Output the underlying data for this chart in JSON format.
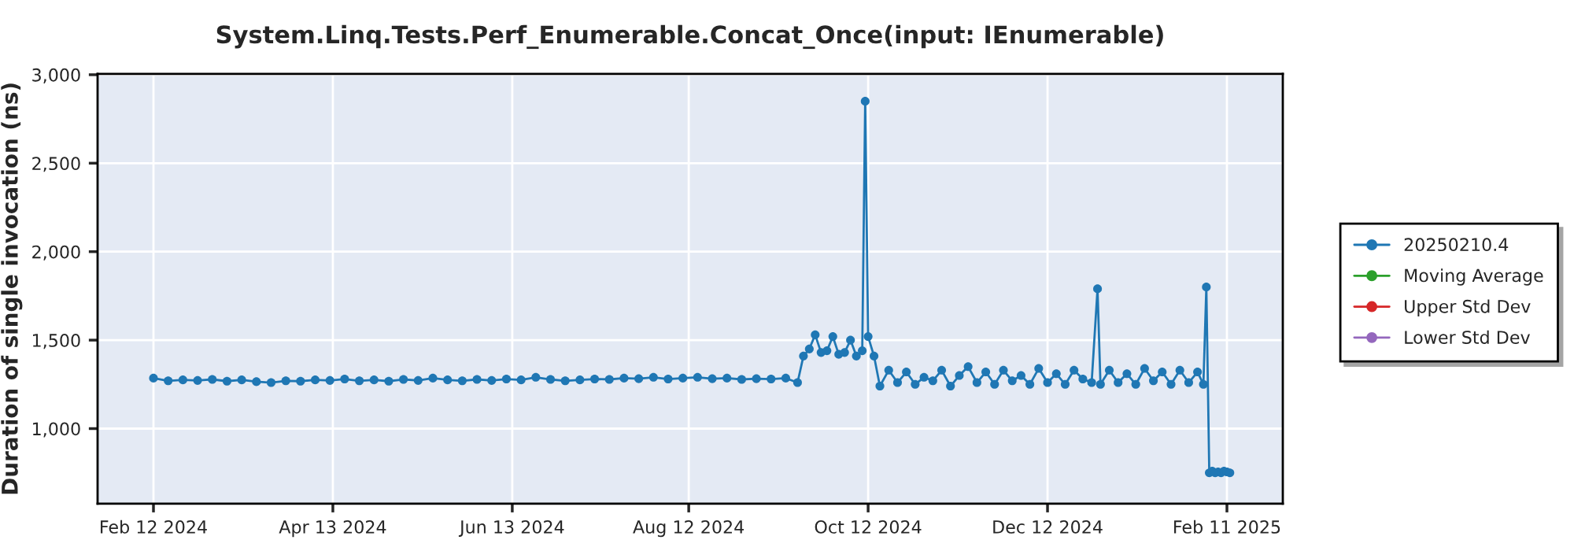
{
  "chart_data": {
    "type": "line",
    "title": "System.Linq.Tests.Perf_Enumerable.Concat_Once(input: IEnumerable)",
    "ylabel": "Duration of single invocation (ns)",
    "xlim": [
      "2024-01-24",
      "2025-03-02"
    ],
    "xticks": [
      {
        "value": "2024-02-12",
        "label": "Feb 12 2024"
      },
      {
        "value": "2024-04-13",
        "label": "Apr 13 2024"
      },
      {
        "value": "2024-06-13",
        "label": "Jun 13 2024"
      },
      {
        "value": "2024-08-12",
        "label": "Aug 12 2024"
      },
      {
        "value": "2024-10-12",
        "label": "Oct 12 2024"
      },
      {
        "value": "2024-12-12",
        "label": "Dec 12 2024"
      },
      {
        "value": "2025-02-11",
        "label": "Feb 11 2025"
      }
    ],
    "ylim": [
      576,
      3005
    ],
    "yticks": [
      {
        "value": 1000,
        "label": "1,000"
      },
      {
        "value": 1500,
        "label": "1,500"
      },
      {
        "value": 2000,
        "label": "2,000"
      },
      {
        "value": 2500,
        "label": "2,500"
      },
      {
        "value": 3000,
        "label": "3,000"
      }
    ],
    "grid": true,
    "legend": "right",
    "marker": "circle",
    "line_style": "solid",
    "series": [
      {
        "name": "20250210.4",
        "color": "#1f77b4",
        "x": [
          "2024-02-12",
          "2024-02-17",
          "2024-02-22",
          "2024-02-27",
          "2024-03-03",
          "2024-03-08",
          "2024-03-13",
          "2024-03-18",
          "2024-03-23",
          "2024-03-28",
          "2024-04-02",
          "2024-04-07",
          "2024-04-12",
          "2024-04-17",
          "2024-04-22",
          "2024-04-27",
          "2024-05-02",
          "2024-05-07",
          "2024-05-12",
          "2024-05-17",
          "2024-05-22",
          "2024-05-27",
          "2024-06-01",
          "2024-06-06",
          "2024-06-11",
          "2024-06-16",
          "2024-06-21",
          "2024-06-26",
          "2024-07-01",
          "2024-07-06",
          "2024-07-11",
          "2024-07-16",
          "2024-07-21",
          "2024-07-26",
          "2024-07-31",
          "2024-08-05",
          "2024-08-10",
          "2024-08-15",
          "2024-08-20",
          "2024-08-25",
          "2024-08-30",
          "2024-09-04",
          "2024-09-09",
          "2024-09-14",
          "2024-09-18",
          "2024-09-20",
          "2024-09-22",
          "2024-09-24",
          "2024-09-26",
          "2024-09-28",
          "2024-09-30",
          "2024-10-02",
          "2024-10-04",
          "2024-10-06",
          "2024-10-08",
          "2024-10-10",
          "2024-10-11",
          "2024-10-12",
          "2024-10-14",
          "2024-10-16",
          "2024-10-19",
          "2024-10-22",
          "2024-10-25",
          "2024-10-28",
          "2024-10-31",
          "2024-11-03",
          "2024-11-06",
          "2024-11-09",
          "2024-11-12",
          "2024-11-15",
          "2024-11-18",
          "2024-11-21",
          "2024-11-24",
          "2024-11-27",
          "2024-11-30",
          "2024-12-03",
          "2024-12-06",
          "2024-12-09",
          "2024-12-12",
          "2024-12-15",
          "2024-12-18",
          "2024-12-21",
          "2024-12-24",
          "2024-12-27",
          "2024-12-29",
          "2024-12-30",
          "2025-01-02",
          "2025-01-05",
          "2025-01-08",
          "2025-01-11",
          "2025-01-14",
          "2025-01-17",
          "2025-01-20",
          "2025-01-23",
          "2025-01-26",
          "2025-01-29",
          "2025-02-01",
          "2025-02-03",
          "2025-02-04",
          "2025-02-05",
          "2025-02-06",
          "2025-02-07",
          "2025-02-08",
          "2025-02-09",
          "2025-02-10",
          "2025-02-11",
          "2025-02-12"
        ],
        "values": [
          1285,
          1270,
          1275,
          1272,
          1278,
          1268,
          1275,
          1265,
          1260,
          1270,
          1268,
          1275,
          1272,
          1280,
          1270,
          1275,
          1268,
          1278,
          1272,
          1285,
          1275,
          1270,
          1278,
          1272,
          1280,
          1275,
          1290,
          1278,
          1270,
          1275,
          1280,
          1278,
          1285,
          1282,
          1290,
          1280,
          1285,
          1290,
          1282,
          1285,
          1278,
          1282,
          1280,
          1285,
          1260,
          1410,
          1450,
          1530,
          1430,
          1440,
          1520,
          1420,
          1430,
          1500,
          1410,
          1440,
          2850,
          1520,
          1410,
          1240,
          1330,
          1260,
          1320,
          1250,
          1290,
          1270,
          1330,
          1240,
          1300,
          1350,
          1260,
          1320,
          1250,
          1330,
          1270,
          1300,
          1250,
          1340,
          1260,
          1310,
          1250,
          1330,
          1280,
          1260,
          1790,
          1250,
          1330,
          1260,
          1310,
          1250,
          1340,
          1270,
          1320,
          1250,
          1330,
          1260,
          1320,
          1250,
          1800,
          750,
          760,
          750,
          755,
          750,
          760,
          755,
          750
        ]
      },
      {
        "name": "Moving Average",
        "color": "#2ca02c"
      },
      {
        "name": "Upper Std Dev",
        "color": "#d62728"
      },
      {
        "name": "Lower Std Dev",
        "color": "#9467bd"
      }
    ]
  }
}
